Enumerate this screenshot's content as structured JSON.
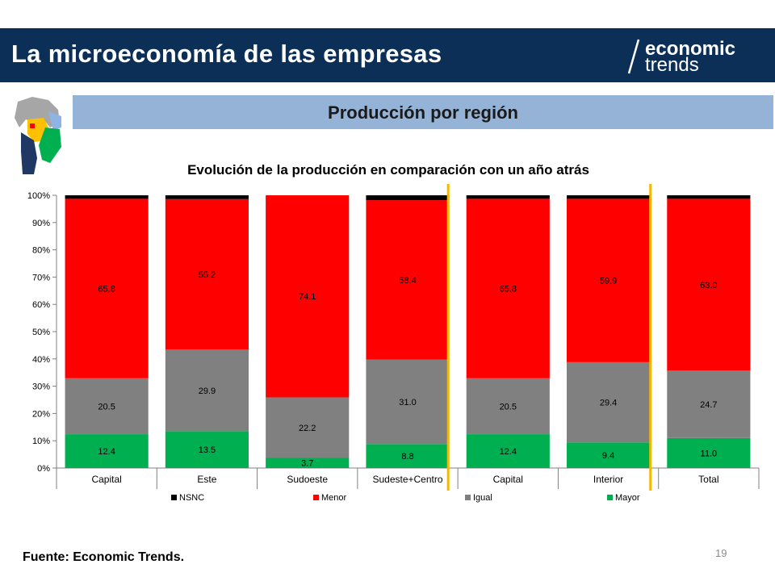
{
  "header": {
    "title": "La microeconomía de las empresas",
    "logo_top": "economic",
    "logo_bottom": "trends"
  },
  "subtitle": "Producción por región",
  "source": "Fuente: Economic Trends.",
  "page_number": "19",
  "colors": {
    "header_bg": "#0b2f57",
    "band_bg": "#95b3d7",
    "nsnc": "#000000",
    "menor": "#ff0000",
    "igual": "#808080",
    "mayor": "#00b050",
    "separator": "#f5b800"
  },
  "chart_data": {
    "type": "bar",
    "stacked": true,
    "title": "Evolución de la producción en comparación con un año atrás",
    "categories": [
      "Capital",
      "Este",
      "Sudoeste",
      "Sudeste+Centro",
      "Capital",
      "Interior",
      "Total"
    ],
    "series": [
      {
        "name": "Mayor",
        "color": "#00b050",
        "values": [
          12.4,
          13.5,
          3.7,
          8.8,
          12.4,
          9.4,
          11.0
        ],
        "labels": [
          "12.4",
          "13.5",
          "3.7",
          "8.8",
          "12.4",
          "9.4",
          "11.0"
        ]
      },
      {
        "name": "Igual",
        "color": "#808080",
        "values": [
          20.5,
          29.9,
          22.2,
          31.0,
          20.5,
          29.4,
          24.7
        ],
        "labels": [
          "20.5",
          "29.9",
          "22.2",
          "31.0",
          "20.5",
          "29.4",
          "24.7"
        ]
      },
      {
        "name": "Menor",
        "color": "#ff0000",
        "values": [
          65.8,
          55.2,
          74.1,
          58.4,
          65.8,
          59.9,
          63.0
        ],
        "labels": [
          "65.8",
          "55.2",
          "74.1",
          "58.4",
          "65.8",
          "59.9",
          "63.0"
        ]
      },
      {
        "name": "NSNC",
        "color": "#000000",
        "values": [
          1.3,
          1.4,
          0.0,
          1.8,
          1.3,
          1.3,
          1.3
        ],
        "labels": []
      }
    ],
    "legend_order": [
      "NSNC",
      "Menor",
      "Igual",
      "Mayor"
    ],
    "legend_position": "bottom",
    "yticks": [
      "0%",
      "10%",
      "20%",
      "30%",
      "40%",
      "50%",
      "60%",
      "70%",
      "80%",
      "90%",
      "100%"
    ],
    "ylim": [
      0,
      100
    ],
    "separators_after_categories": [
      3,
      5
    ]
  }
}
